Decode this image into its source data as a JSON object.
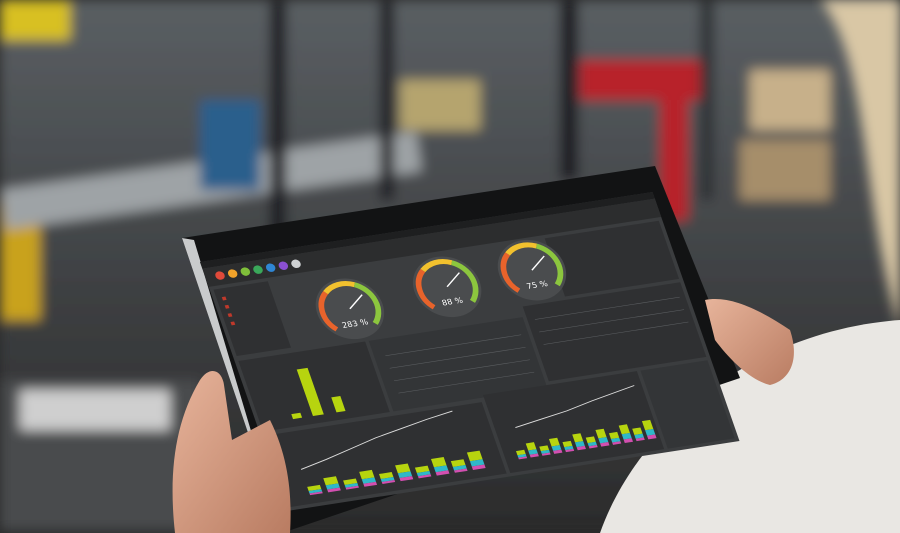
{
  "dashboard": {
    "gauges": [
      {
        "label": "283 %"
      },
      {
        "label": "88 %"
      },
      {
        "label": "75 %"
      }
    ]
  }
}
